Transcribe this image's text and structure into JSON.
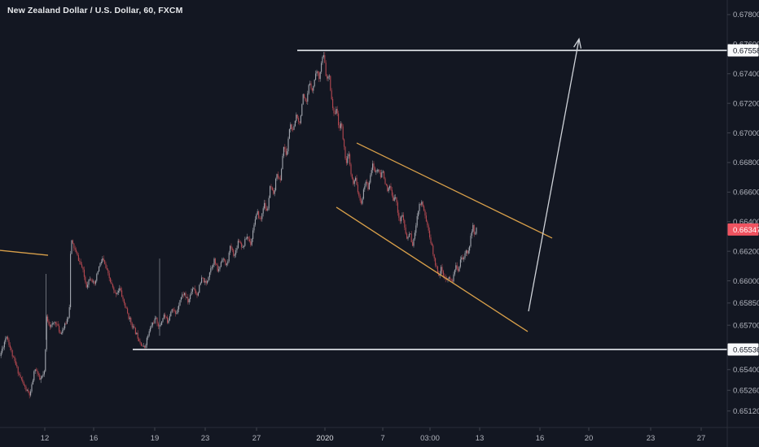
{
  "header": {
    "symbol_title": "New Zealand Dollar / U.S. Dollar, 60, FXCM"
  },
  "colors": {
    "background": "#131722",
    "axis_line": "#2a2e39",
    "tick_dash": "#40444f",
    "tick_text": "#b2b5be",
    "tick_text_bright": "#dcdee3",
    "up_body": "#a8acb4",
    "up_wick": "#90949c",
    "down_body": "#b94a52",
    "down_wick": "#a2434a",
    "trendline_orange": "#d9a04a",
    "level_line_white": "#dadde2",
    "arrow_white": "#cfd3d9",
    "label_white_bg": "#f8f9fb",
    "label_white_fg": "#131722",
    "label_red_bg": "#ef5360",
    "label_red_fg": "#ffffff"
  },
  "chart_data": {
    "type": "candlestick",
    "title": "New Zealand Dollar / U.S. Dollar, 60, FXCM",
    "symbol": "NZD/USD",
    "interval_minutes": "60",
    "exchange": "FXCM",
    "last_price": "0.66347",
    "ylim": [
      0.65,
      0.679
    ],
    "grid": "off",
    "y_axis": {
      "side": "right",
      "ticks": [
        "0.67800",
        "0.67600",
        "0.67400",
        "0.67200",
        "0.67000",
        "0.66800",
        "0.66600",
        "0.66400",
        "0.66200",
        "0.66000",
        "0.65850",
        "0.65700",
        "0.65400",
        "0.65260",
        "0.65120"
      ]
    },
    "x_axis": {
      "ticks": [
        {
          "label": "12",
          "x": 55
        },
        {
          "label": "16",
          "x": 115
        },
        {
          "label": "19",
          "x": 190
        },
        {
          "label": "23",
          "x": 252
        },
        {
          "label": "27",
          "x": 315
        },
        {
          "label": "2020",
          "x": 399,
          "bright": true
        },
        {
          "label": "7",
          "x": 470
        },
        {
          "label": "03:00",
          "x": 528
        },
        {
          "label": "13",
          "x": 589
        },
        {
          "label": "16",
          "x": 663
        },
        {
          "label": "20",
          "x": 723
        },
        {
          "label": "23",
          "x": 799
        },
        {
          "label": "27",
          "x": 861
        }
      ]
    },
    "price_ref": [
      {
        "price": 0.67558,
        "y": 62
      },
      {
        "price": 0.65536,
        "y": 430
      }
    ],
    "levels": [
      {
        "name": "resistance",
        "price": 0.67558,
        "x1": 365,
        "x2": 893
      },
      {
        "name": "support",
        "price": 0.65536,
        "x1": 163,
        "x2": 893
      }
    ],
    "axis_labels": [
      {
        "text": "0.67558",
        "price": 0.67558,
        "style": "white"
      },
      {
        "text": "0.66347",
        "price": 0.66347,
        "style": "red"
      },
      {
        "text": "0.65536",
        "price": 0.65536,
        "style": "white"
      }
    ],
    "trendlines": [
      {
        "name": "channel-upper",
        "x1": 438,
        "p1": 0.66932,
        "x2": 678,
        "p2": 0.66289
      },
      {
        "name": "channel-lower",
        "x1": 413,
        "p1": 0.66498,
        "x2": 648,
        "p2": 0.65657
      },
      {
        "name": "left-segment",
        "x1": 0,
        "p1": 0.66206,
        "x2": 59,
        "p2": 0.66173
      }
    ],
    "arrow": {
      "x1": 649,
      "p1": 0.65794,
      "x2": 711,
      "p2": 0.67635
    },
    "spikes": [
      {
        "x": 56.5,
        "p_top": 0.66047,
        "p_bottom": 0.65601
      },
      {
        "x": 196,
        "p_top": 0.66151,
        "p_bottom": 0.65629
      }
    ],
    "candles": {
      "x_start": 1.2,
      "x_end": 586,
      "step": 1.4,
      "body_width": 1.1,
      "seed": 11,
      "body_noise": 0.0003,
      "wick_noise": 0.0002
    },
    "price_path": [
      [
        0,
        0.65492
      ],
      [
        8,
        0.65635
      ],
      [
        16,
        0.65481
      ],
      [
        24,
        0.6536
      ],
      [
        31,
        0.65272
      ],
      [
        37,
        0.65223
      ],
      [
        43,
        0.65415
      ],
      [
        49,
        0.65327
      ],
      [
        55,
        0.65382
      ],
      [
        57,
        0.65756
      ],
      [
        62,
        0.6569
      ],
      [
        68,
        0.65728
      ],
      [
        74,
        0.65646
      ],
      [
        80,
        0.65701
      ],
      [
        85,
        0.65783
      ],
      [
        87,
        0.66278
      ],
      [
        91,
        0.66223
      ],
      [
        96,
        0.66151
      ],
      [
        101,
        0.66086
      ],
      [
        106,
        0.65965
      ],
      [
        111,
        0.66031
      ],
      [
        116,
        0.65965
      ],
      [
        121,
        0.66086
      ],
      [
        126,
        0.66151
      ],
      [
        131,
        0.66069
      ],
      [
        136,
        0.65987
      ],
      [
        141,
        0.6591
      ],
      [
        147,
        0.65948
      ],
      [
        152,
        0.65855
      ],
      [
        158,
        0.65756
      ],
      [
        163,
        0.6569
      ],
      [
        168,
        0.65635
      ],
      [
        173,
        0.6558
      ],
      [
        177,
        0.65541
      ],
      [
        181,
        0.65618
      ],
      [
        186,
        0.65701
      ],
      [
        191,
        0.65745
      ],
      [
        196,
        0.65684
      ],
      [
        201,
        0.65772
      ],
      [
        206,
        0.65723
      ],
      [
        211,
        0.65822
      ],
      [
        216,
        0.65767
      ],
      [
        221,
        0.65877
      ],
      [
        226,
        0.65921
      ],
      [
        231,
        0.65855
      ],
      [
        237,
        0.65965
      ],
      [
        242,
        0.65904
      ],
      [
        248,
        0.6602
      ],
      [
        253,
        0.65976
      ],
      [
        258,
        0.66075
      ],
      [
        263,
        0.6614
      ],
      [
        268,
        0.66058
      ],
      [
        273,
        0.66162
      ],
      [
        278,
        0.66096
      ],
      [
        283,
        0.66234
      ],
      [
        288,
        0.66168
      ],
      [
        293,
        0.66283
      ],
      [
        298,
        0.66223
      ],
      [
        303,
        0.66305
      ],
      [
        308,
        0.6625
      ],
      [
        312,
        0.66388
      ],
      [
        316,
        0.66459
      ],
      [
        320,
        0.66404
      ],
      [
        324,
        0.66525
      ],
      [
        328,
        0.66459
      ],
      [
        332,
        0.66646
      ],
      [
        336,
        0.66569
      ],
      [
        340,
        0.66734
      ],
      [
        344,
        0.66663
      ],
      [
        348,
        0.6691
      ],
      [
        352,
        0.66844
      ],
      [
        356,
        0.67064
      ],
      [
        360,
        0.67003
      ],
      [
        364,
        0.6713
      ],
      [
        368,
        0.67064
      ],
      [
        372,
        0.67251
      ],
      [
        376,
        0.67185
      ],
      [
        380,
        0.67349
      ],
      [
        384,
        0.67283
      ],
      [
        388,
        0.67426
      ],
      [
        392,
        0.67377
      ],
      [
        395,
        0.67487
      ],
      [
        397,
        0.67531
      ],
      [
        399,
        0.67459
      ],
      [
        401,
        0.67349
      ],
      [
        404,
        0.67393
      ],
      [
        407,
        0.6724
      ],
      [
        410,
        0.67119
      ],
      [
        413,
        0.67174
      ],
      [
        416,
        0.67031
      ],
      [
        419,
        0.67075
      ],
      [
        422,
        0.66921
      ],
      [
        425,
        0.668
      ],
      [
        428,
        0.66855
      ],
      [
        431,
        0.66717
      ],
      [
        434,
        0.66646
      ],
      [
        437,
        0.66701
      ],
      [
        440,
        0.6658
      ],
      [
        443,
        0.66514
      ],
      [
        446,
        0.66591
      ],
      [
        449,
        0.66679
      ],
      [
        452,
        0.66624
      ],
      [
        455,
        0.66734
      ],
      [
        458,
        0.66789
      ],
      [
        461,
        0.66723
      ],
      [
        464,
        0.66767
      ],
      [
        467,
        0.66695
      ],
      [
        470,
        0.66745
      ],
      [
        473,
        0.66668
      ],
      [
        476,
        0.66597
      ],
      [
        479,
        0.66646
      ],
      [
        482,
        0.66542
      ],
      [
        485,
        0.66591
      ],
      [
        488,
        0.66481
      ],
      [
        491,
        0.66404
      ],
      [
        494,
        0.66448
      ],
      [
        497,
        0.66349
      ],
      [
        500,
        0.66278
      ],
      [
        503,
        0.66333
      ],
      [
        506,
        0.66239
      ],
      [
        509,
        0.66294
      ],
      [
        512,
        0.66443
      ],
      [
        515,
        0.66514
      ],
      [
        518,
        0.66536
      ],
      [
        521,
        0.6647
      ],
      [
        524,
        0.66393
      ],
      [
        527,
        0.66316
      ],
      [
        530,
        0.66239
      ],
      [
        533,
        0.66151
      ],
      [
        536,
        0.66086
      ],
      [
        539,
        0.66042
      ],
      [
        542,
        0.66086
      ],
      [
        545,
        0.6602
      ],
      [
        548,
        0.65992
      ],
      [
        551,
        0.66042
      ],
      [
        554,
        0.65987
      ],
      [
        557,
        0.66031
      ],
      [
        560,
        0.66113
      ],
      [
        563,
        0.66069
      ],
      [
        566,
        0.66168
      ],
      [
        569,
        0.66129
      ],
      [
        572,
        0.66223
      ],
      [
        575,
        0.66184
      ],
      [
        578,
        0.66295
      ],
      [
        581,
        0.66372
      ],
      [
        583,
        0.66301
      ],
      [
        585,
        0.66347
      ]
    ]
  }
}
